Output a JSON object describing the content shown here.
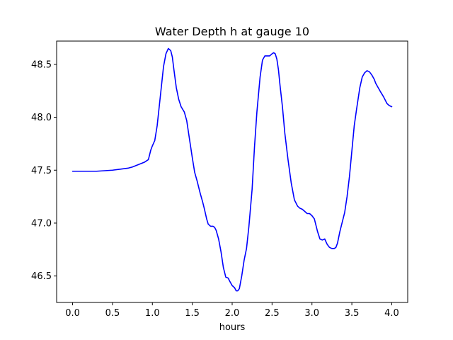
{
  "chart_data": {
    "type": "line",
    "title": "Water Depth h at gauge 10",
    "xlabel": "hours",
    "ylabel": "",
    "xlim": [
      -0.2,
      4.2
    ],
    "ylim": [
      46.25,
      48.72
    ],
    "xticks": [
      0.0,
      0.5,
      1.0,
      1.5,
      2.0,
      2.5,
      3.0,
      3.5,
      4.0
    ],
    "xtick_labels": [
      "0.0",
      "0.5",
      "1.0",
      "1.5",
      "2.0",
      "2.5",
      "3.0",
      "3.5",
      "4.0"
    ],
    "yticks": [
      46.5,
      47.0,
      47.5,
      48.0,
      48.5
    ],
    "ytick_labels": [
      "46.5",
      "47.0",
      "47.5",
      "48.0",
      "48.5"
    ],
    "grid": false,
    "series": [
      {
        "color": "#0000ff",
        "x": [
          0.0,
          0.1,
          0.2,
          0.3,
          0.4,
          0.5,
          0.6,
          0.7,
          0.75,
          0.8,
          0.85,
          0.9,
          0.95,
          0.98,
          1.0,
          1.03,
          1.06,
          1.1,
          1.14,
          1.17,
          1.2,
          1.23,
          1.25,
          1.27,
          1.3,
          1.33,
          1.36,
          1.4,
          1.43,
          1.46,
          1.5,
          1.53,
          1.56,
          1.6,
          1.63,
          1.65,
          1.68,
          1.7,
          1.73,
          1.76,
          1.78,
          1.8,
          1.83,
          1.86,
          1.89,
          1.92,
          1.95,
          1.97,
          2.0,
          2.03,
          2.05,
          2.07,
          2.09,
          2.12,
          2.15,
          2.18,
          2.21,
          2.25,
          2.28,
          2.31,
          2.35,
          2.38,
          2.41,
          2.44,
          2.47,
          2.5,
          2.52,
          2.54,
          2.56,
          2.58,
          2.6,
          2.63,
          2.66,
          2.7,
          2.74,
          2.78,
          2.82,
          2.85,
          2.88,
          2.91,
          2.94,
          2.97,
          3.0,
          3.03,
          3.05,
          3.07,
          3.1,
          3.13,
          3.16,
          3.19,
          3.22,
          3.25,
          3.28,
          3.3,
          3.32,
          3.35,
          3.38,
          3.41,
          3.44,
          3.47,
          3.5,
          3.53,
          3.56,
          3.6,
          3.63,
          3.66,
          3.69,
          3.72,
          3.75,
          3.78,
          3.8,
          3.83,
          3.86,
          3.9,
          3.94,
          3.97,
          4.0
        ],
        "y": [
          47.49,
          47.49,
          47.49,
          47.49,
          47.495,
          47.5,
          47.51,
          47.52,
          47.53,
          47.545,
          47.56,
          47.575,
          47.6,
          47.69,
          47.73,
          47.78,
          47.92,
          48.2,
          48.48,
          48.6,
          48.65,
          48.63,
          48.57,
          48.45,
          48.28,
          48.17,
          48.1,
          48.05,
          47.97,
          47.82,
          47.62,
          47.48,
          47.4,
          47.28,
          47.2,
          47.14,
          47.04,
          46.99,
          46.97,
          46.97,
          46.96,
          46.93,
          46.85,
          46.73,
          46.58,
          46.49,
          46.48,
          46.45,
          46.41,
          46.39,
          46.36,
          46.36,
          46.38,
          46.5,
          46.65,
          46.76,
          46.97,
          47.32,
          47.72,
          48.05,
          48.38,
          48.54,
          48.58,
          48.58,
          48.58,
          48.6,
          48.61,
          48.6,
          48.55,
          48.45,
          48.3,
          48.1,
          47.85,
          47.6,
          47.38,
          47.22,
          47.16,
          47.14,
          47.13,
          47.11,
          47.09,
          47.09,
          47.07,
          47.04,
          46.98,
          46.92,
          46.85,
          46.84,
          46.85,
          46.8,
          46.77,
          46.76,
          46.76,
          46.77,
          46.81,
          46.92,
          47.01,
          47.1,
          47.25,
          47.44,
          47.68,
          47.92,
          48.08,
          48.28,
          48.38,
          48.42,
          48.44,
          48.43,
          48.4,
          48.36,
          48.32,
          48.28,
          48.24,
          48.19,
          48.13,
          48.11,
          48.1
        ]
      }
    ]
  }
}
